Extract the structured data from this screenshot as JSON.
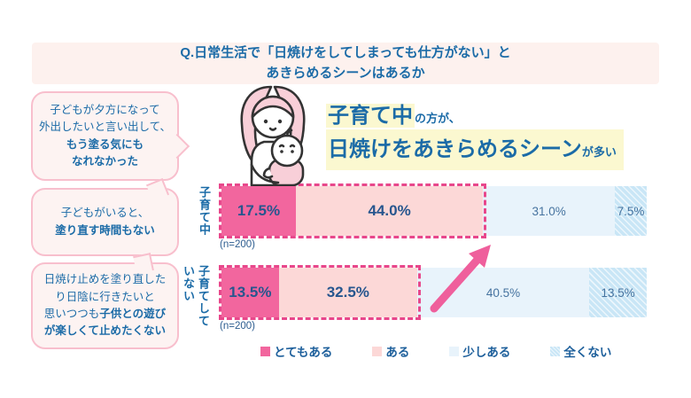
{
  "header": {
    "line1": "Q.日常生活で「日焼けをしてしまっても仕方がない」と",
    "line2": "あきらめるシーンはあるか"
  },
  "bubbles": [
    {
      "normal": "子どもが夕方になって\n外出したいと言い出して、\n",
      "bold": "もう塗る気にも\nなれなかった"
    },
    {
      "normal": "子どもがいると、\n",
      "bold": "塗り直す時間もない"
    },
    {
      "normal": "日焼け止めを塗り直した\nり日陰に行きたいと\n思いつつも",
      "bold": "子供との遊び\nが楽しくて止めたくない"
    }
  ],
  "headline": {
    "big1": "子育て中",
    "small1": "の方が、",
    "big2": "日焼けをあきらめるシーン",
    "small2": "が多い"
  },
  "chart_data": {
    "type": "bar",
    "orientation": "horizontal-stacked",
    "title": "Q.日常生活で「日焼けをしてしまっても仕方がない」とあきらめるシーンはあるか",
    "categories": [
      "子育て中",
      "子育てしていない"
    ],
    "sample_labels": [
      "(n=200)",
      "(n=200)"
    ],
    "series": [
      {
        "name": "とてもある",
        "color": "#f2669e",
        "values": [
          17.5,
          13.5
        ]
      },
      {
        "name": "ある",
        "color": "#fcd8d7",
        "values": [
          44.0,
          32.5
        ]
      },
      {
        "name": "少しある",
        "color": "#e8f3fb",
        "values": [
          31.0,
          40.5
        ]
      },
      {
        "name": "全くない",
        "color": "#c9e6f6",
        "values": [
          7.5,
          13.5
        ]
      }
    ],
    "xlim": [
      0,
      100
    ],
    "legend_position": "bottom",
    "dashed_emphasis_series_indexes": [
      0,
      1
    ]
  },
  "colors": {
    "accent_blue_text": "#1b6ba7",
    "banner_pink_bg": "#fdf1ee",
    "bubble_border_pink": "#f8bfcd",
    "dashed_emphasis_pink": "#e8478b",
    "arrow_pink": "#ef5f9c",
    "yellow_highlight": "#fbf8d0"
  }
}
